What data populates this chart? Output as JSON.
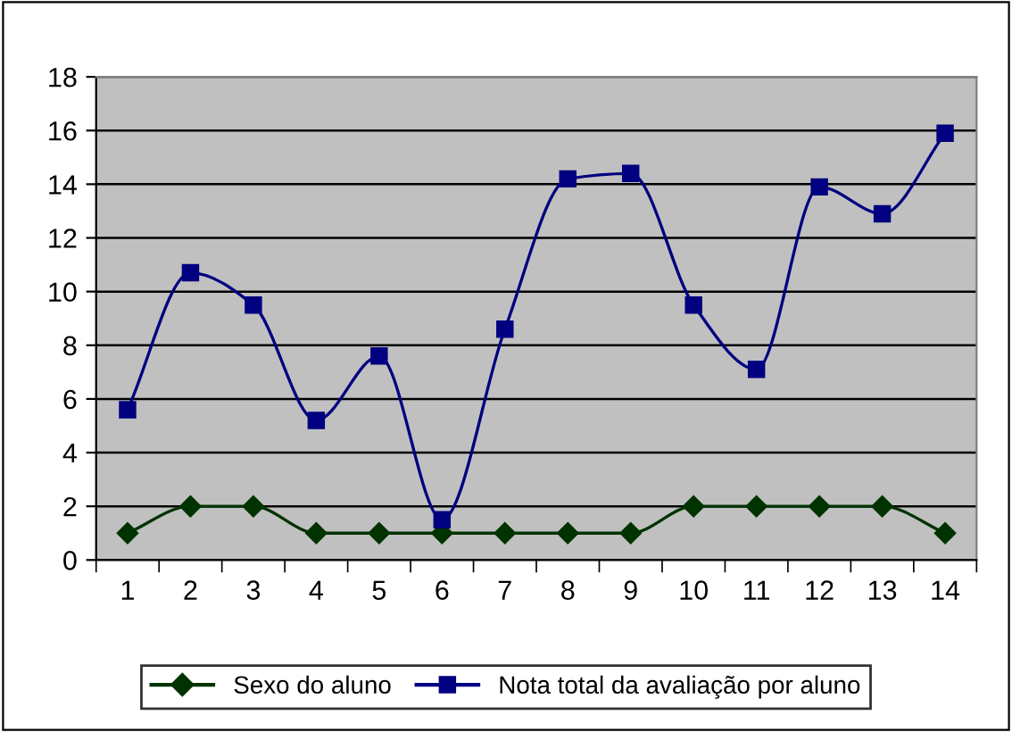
{
  "chart_data": {
    "type": "line",
    "categories": [
      "1",
      "2",
      "3",
      "4",
      "5",
      "6",
      "7",
      "8",
      "9",
      "10",
      "11",
      "12",
      "13",
      "14"
    ],
    "series": [
      {
        "name": "Sexo do aluno",
        "color": "#003300",
        "marker": "diamond",
        "values": [
          1,
          2,
          2,
          1,
          1,
          1,
          1,
          1,
          1,
          2,
          2,
          2,
          2,
          1
        ]
      },
      {
        "name": "Nota total da avaliação por aluno",
        "color": "#000080",
        "marker": "square",
        "values": [
          5.6,
          10.7,
          9.5,
          5.2,
          7.6,
          1.5,
          8.6,
          14.2,
          14.4,
          9.5,
          7.1,
          13.9,
          12.9,
          15.9
        ]
      }
    ],
    "ylim": [
      0,
      18
    ],
    "yticks": [
      0,
      2,
      4,
      6,
      8,
      10,
      12,
      14,
      16,
      18
    ],
    "grid": "y",
    "legend": "bottom",
    "line_style": "solid"
  }
}
